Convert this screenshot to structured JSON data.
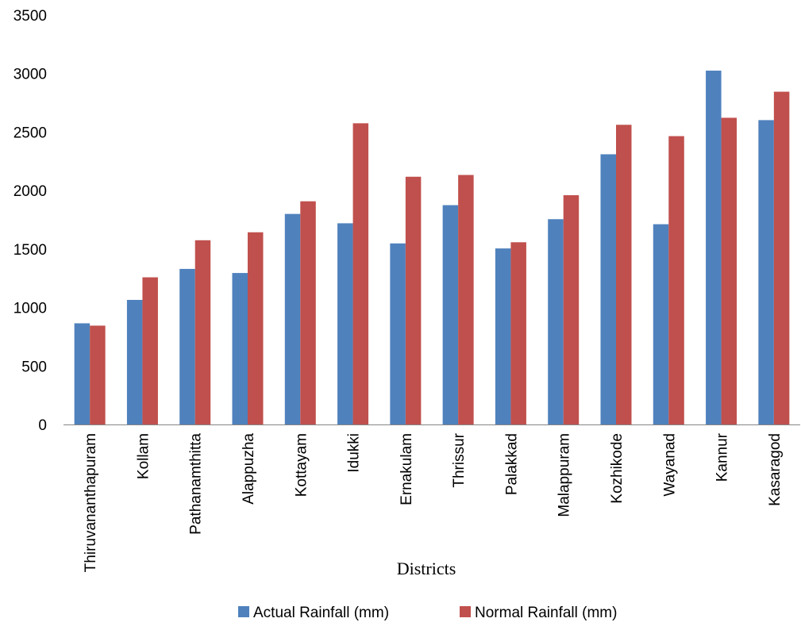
{
  "chart_data": {
    "type": "bar",
    "title": "",
    "xlabel": "Districts",
    "ylabel": "",
    "ylim": [
      0,
      3500
    ],
    "yticks": [
      0,
      500,
      1000,
      1500,
      2000,
      2500,
      3000,
      3500
    ],
    "grid": false,
    "legend_position": "bottom",
    "categories": [
      "Thiruvananthapuram",
      "Kollam",
      "Pathanamthitta",
      "Alappuzha",
      "Kottayam",
      "Idukki",
      "Ernakulam",
      "Thrissur",
      "Palakkad",
      "Malappuram",
      "Kozhikode",
      "Wayanad",
      "Kannur",
      "Kasaragod"
    ],
    "series": [
      {
        "name": "Actual Rainfall (mm)",
        "color": "#4F81BD",
        "values": [
          865,
          1065,
          1330,
          1295,
          1800,
          1720,
          1548,
          1875,
          1505,
          1755,
          2310,
          1712,
          3025,
          2602
        ]
      },
      {
        "name": "Normal Rainfall (mm)",
        "color": "#C0504D",
        "values": [
          845,
          1258,
          1575,
          1643,
          1908,
          2575,
          2118,
          2133,
          1558,
          1960,
          2562,
          2465,
          2622,
          2845
        ]
      }
    ]
  }
}
